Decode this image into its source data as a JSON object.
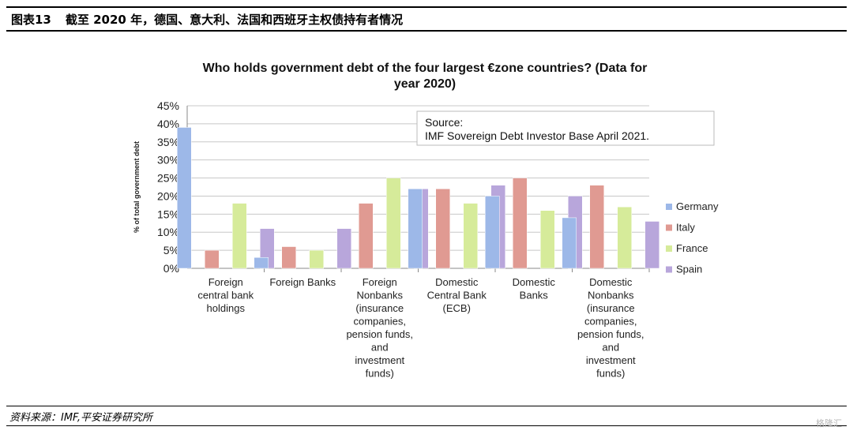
{
  "header": {
    "figure_label": "图表13",
    "title": "截至 2020 年，德国、意大利、法国和西班牙主权债持有者情况"
  },
  "footer": {
    "source": "资料来源：IMF,平安证券研究所"
  },
  "watermark": "格隆汇",
  "colors": {
    "Germany": "#9db8e8",
    "Italy": "#e09a92",
    "France": "#d6eb9a",
    "Spain": "#b8a6db"
  },
  "chart_data": {
    "type": "bar",
    "title_lines": [
      "Who holds government debt of the four largest €zone countries? (Data for",
      "year 2020)"
    ],
    "ylabel": "% of total government debt",
    "ylim": [
      0,
      45
    ],
    "yticks": [
      "0%",
      "5%",
      "10%",
      "15%",
      "20%",
      "25%",
      "30%",
      "35%",
      "40%",
      "45%"
    ],
    "grid": true,
    "legend_position": "right",
    "categories": [
      [
        "Foreign",
        "central bank",
        "holdings"
      ],
      [
        "Foreign Banks"
      ],
      [
        "Foreign",
        "Nonbanks",
        "(insurance",
        "companies,",
        "pension funds,",
        "and",
        "investment",
        "funds)"
      ],
      [
        "Domestic",
        "Central Bank",
        "(ECB)"
      ],
      [
        "Domestic",
        "Banks"
      ],
      [
        "Domestic",
        "Nonbanks",
        "(insurance",
        "companies,",
        "pension funds,",
        "and",
        "investment",
        "funds)"
      ]
    ],
    "series": [
      {
        "name": "Germany",
        "values": [
          39,
          3,
          0,
          22,
          20,
          14
        ]
      },
      {
        "name": "Italy",
        "values": [
          5,
          6,
          18,
          22,
          25,
          23
        ]
      },
      {
        "name": "France",
        "values": [
          18,
          5,
          25,
          18,
          16,
          17
        ]
      },
      {
        "name": "Spain",
        "values": [
          11,
          11,
          22,
          23,
          20,
          13
        ]
      }
    ],
    "annotation_lines": [
      "Source:",
      "IMF Sovereign Debt Investor Base April 2021."
    ]
  }
}
